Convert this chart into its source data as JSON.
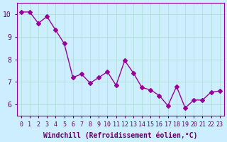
{
  "x": [
    0,
    1,
    2,
    3,
    4,
    5,
    6,
    7,
    8,
    9,
    10,
    11,
    12,
    13,
    14,
    15,
    16,
    17,
    18,
    19,
    20,
    21,
    22,
    23
  ],
  "y": [
    10.1,
    10.1,
    9.6,
    9.9,
    9.3,
    8.7,
    7.2,
    7.35,
    6.95,
    7.2,
    7.45,
    6.85,
    7.95,
    7.4,
    6.75,
    6.65,
    6.4,
    5.95,
    6.8,
    5.85,
    6.2,
    6.2,
    6.55,
    6.6
  ],
  "line_color": "#990099",
  "marker": "D",
  "marker_size": 3,
  "background_color": "#cceeff",
  "grid_color": "#aaddcc",
  "xlabel": "Windchill (Refroidissement éolien,°C)",
  "xlabel_color": "#660066",
  "tick_color": "#660066",
  "ylim": [
    5.5,
    10.5
  ],
  "xlim": [
    -0.5,
    23.5
  ],
  "yticks": [
    6,
    7,
    8,
    9,
    10
  ],
  "xticks": [
    0,
    1,
    2,
    3,
    4,
    5,
    6,
    7,
    8,
    9,
    10,
    11,
    12,
    13,
    14,
    15,
    16,
    17,
    18,
    19,
    20,
    21,
    22,
    23
  ],
  "tick_fontsize": 6,
  "xlabel_fontsize": 7
}
